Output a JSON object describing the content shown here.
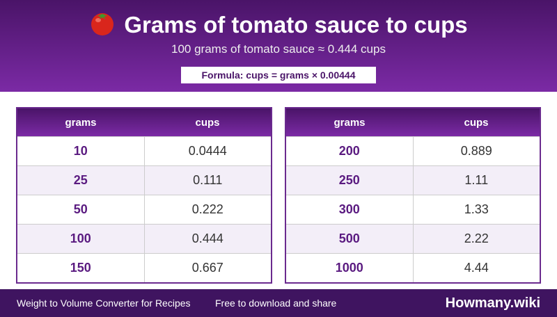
{
  "header": {
    "title": "Grams of tomato sauce to cups",
    "subtitle": "100 grams of tomato sauce ≈ 0.444 cups",
    "formula": "Formula: cups = grams × 0.00444"
  },
  "tables": [
    {
      "headers": [
        "grams",
        "cups"
      ],
      "rows": [
        [
          "10",
          "0.0444"
        ],
        [
          "25",
          "0.111"
        ],
        [
          "50",
          "0.222"
        ],
        [
          "100",
          "0.444"
        ],
        [
          "150",
          "0.667"
        ]
      ]
    },
    {
      "headers": [
        "grams",
        "cups"
      ],
      "rows": [
        [
          "200",
          "0.889"
        ],
        [
          "250",
          "1.11"
        ],
        [
          "300",
          "1.33"
        ],
        [
          "500",
          "2.22"
        ],
        [
          "1000",
          "4.44"
        ]
      ]
    }
  ],
  "footer": {
    "left": "Weight to Volume Converter for Recipes",
    "middle": "Free to download and share",
    "brand": "Howmany.wiki"
  }
}
